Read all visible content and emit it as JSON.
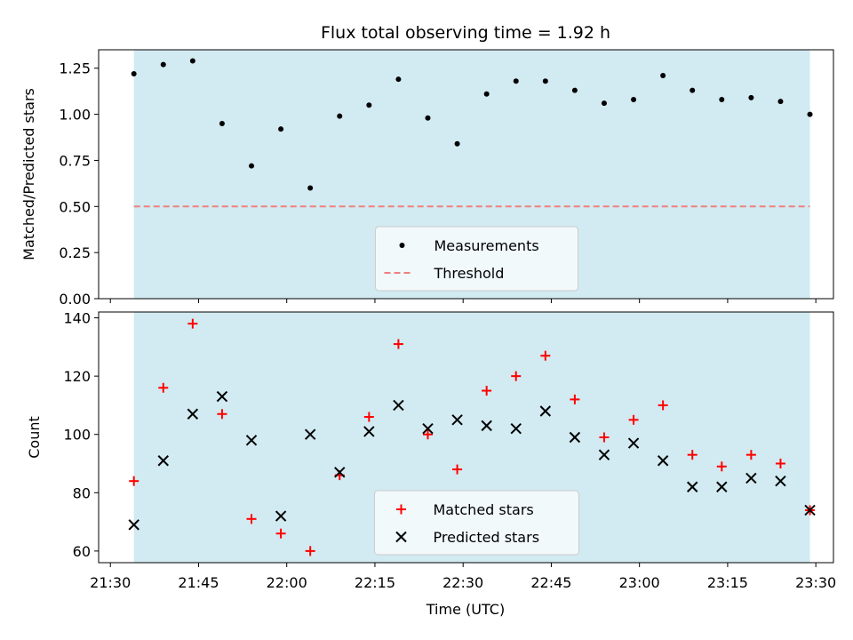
{
  "title": "Flux total observing time = 1.92 h",
  "xlabel": "Time (UTC)",
  "colors": {
    "coverage_band": "#add8e6",
    "measurements": "#000000",
    "threshold": "#f08080",
    "matched": "#ff0000",
    "predicted": "#000000",
    "legend_bg": "#f7fbfd"
  },
  "x_tick_labels": [
    "21:30",
    "21:45",
    "22:00",
    "22:15",
    "22:30",
    "22:45",
    "23:00",
    "23:15",
    "23:30"
  ],
  "chart_data": [
    {
      "type": "scatter",
      "title": "Flux total observing time = 1.92 h",
      "ylabel": "Matched/Predicted stars",
      "xlim": [
        "21:28",
        "23:33"
      ],
      "ylim": [
        0,
        1.35
      ],
      "yticks": [
        "0.00",
        "0.25",
        "0.50",
        "0.75",
        "1.00",
        "1.25"
      ],
      "shaded_span": [
        "21:34",
        "23:29"
      ],
      "threshold": 0.5,
      "legend": {
        "placement": "lower center",
        "entries": [
          "Measurements",
          "Threshold"
        ]
      },
      "x": [
        "21:34",
        "21:39",
        "21:44",
        "21:49",
        "21:54",
        "21:59",
        "22:04",
        "22:09",
        "22:14",
        "22:19",
        "22:24",
        "22:29",
        "22:34",
        "22:39",
        "22:44",
        "22:49",
        "22:54",
        "22:59",
        "23:04",
        "23:09",
        "23:14",
        "23:19",
        "23:24",
        "23:29"
      ],
      "series": [
        {
          "name": "Measurements",
          "marker": "dot",
          "values": [
            1.22,
            1.27,
            1.29,
            0.95,
            0.72,
            0.92,
            0.6,
            0.99,
            1.05,
            1.19,
            0.98,
            0.84,
            1.11,
            1.18,
            1.18,
            1.13,
            1.06,
            1.08,
            1.21,
            1.13,
            1.08,
            1.09,
            1.07,
            1.0
          ]
        }
      ]
    },
    {
      "type": "scatter",
      "xlabel": "Time (UTC)",
      "ylabel": "Count",
      "xlim": [
        "21:28",
        "23:33"
      ],
      "ylim": [
        56,
        142
      ],
      "yticks": [
        "60",
        "80",
        "100",
        "120",
        "140"
      ],
      "shaded_span": [
        "21:34",
        "23:29"
      ],
      "legend": {
        "placement": "lower center",
        "entries": [
          "Matched stars",
          "Predicted stars"
        ]
      },
      "x": [
        "21:34",
        "21:39",
        "21:44",
        "21:49",
        "21:54",
        "21:59",
        "22:04",
        "22:09",
        "22:14",
        "22:19",
        "22:24",
        "22:29",
        "22:34",
        "22:39",
        "22:44",
        "22:49",
        "22:54",
        "22:59",
        "23:04",
        "23:09",
        "23:14",
        "23:19",
        "23:24",
        "23:29"
      ],
      "series": [
        {
          "name": "Matched stars",
          "marker": "plus",
          "values": [
            84,
            116,
            138,
            107,
            71,
            66,
            60,
            86,
            106,
            131,
            100,
            88,
            115,
            120,
            127,
            112,
            99,
            105,
            110,
            93,
            89,
            93,
            90,
            74
          ]
        },
        {
          "name": "Predicted stars",
          "marker": "x",
          "values": [
            69,
            91,
            107,
            113,
            98,
            72,
            100,
            87,
            101,
            110,
            102,
            105,
            103,
            102,
            108,
            99,
            93,
            97,
            91,
            82,
            82,
            85,
            84,
            74
          ]
        }
      ]
    }
  ]
}
